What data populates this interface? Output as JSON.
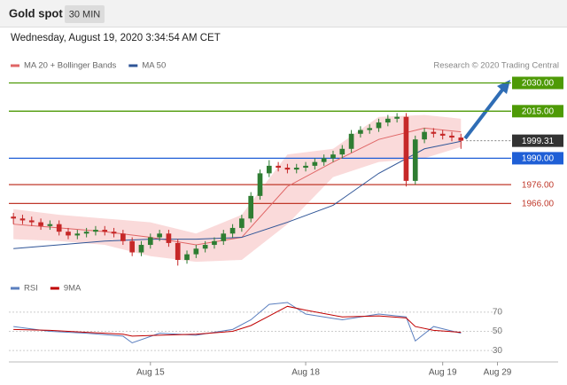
{
  "header": {
    "title": "Gold spot",
    "interval": "30 MIN",
    "timestamp": "Wednesday, August 19, 2020 3:34:54 AM CET"
  },
  "chart_data": [
    {
      "type": "candlestick",
      "source": "Research © 2020 Trading Central",
      "up_color": "#2e7d32",
      "down_color": "#c62828",
      "ohlc": [
        [
          1959,
          1961,
          1955,
          1958
        ],
        [
          1958,
          1960,
          1955,
          1957
        ],
        [
          1957,
          1959,
          1954,
          1956
        ],
        [
          1956,
          1958,
          1952,
          1954
        ],
        [
          1954,
          1957,
          1952,
          1955
        ],
        [
          1955,
          1957,
          1949,
          1951
        ],
        [
          1951,
          1953,
          1947,
          1949
        ],
        [
          1949,
          1952,
          1947,
          1950
        ],
        [
          1950,
          1953,
          1948,
          1951
        ],
        [
          1951,
          1954,
          1949,
          1952
        ],
        [
          1952,
          1954,
          1949,
          1951
        ],
        [
          1951,
          1953,
          1948,
          1950
        ],
        [
          1950,
          1952,
          1944,
          1946
        ],
        [
          1946,
          1948,
          1938,
          1940
        ],
        [
          1940,
          1946,
          1938,
          1944
        ],
        [
          1944,
          1950,
          1942,
          1948
        ],
        [
          1948,
          1952,
          1946,
          1950
        ],
        [
          1950,
          1952,
          1943,
          1945
        ],
        [
          1945,
          1947,
          1933,
          1936
        ],
        [
          1936,
          1941,
          1934,
          1939
        ],
        [
          1939,
          1944,
          1937,
          1942
        ],
        [
          1942,
          1946,
          1940,
          1944
        ],
        [
          1944,
          1948,
          1942,
          1946
        ],
        [
          1946,
          1952,
          1944,
          1950
        ],
        [
          1950,
          1955,
          1948,
          1953
        ],
        [
          1953,
          1960,
          1951,
          1958
        ],
        [
          1958,
          1972,
          1956,
          1970
        ],
        [
          1970,
          1984,
          1968,
          1982
        ],
        [
          1982,
          1989,
          1980,
          1986
        ],
        [
          1986,
          1988,
          1983,
          1985
        ],
        [
          1985,
          1987,
          1982,
          1984
        ],
        [
          1984,
          1987,
          1982,
          1985
        ],
        [
          1985,
          1988,
          1983,
          1986
        ],
        [
          1986,
          1990,
          1984,
          1988
        ],
        [
          1988,
          1992,
          1986,
          1990
        ],
        [
          1990,
          1994,
          1988,
          1992
        ],
        [
          1992,
          1997,
          1990,
          1995
        ],
        [
          1995,
          2005,
          1993,
          2003
        ],
        [
          2003,
          2007,
          2001,
          2005
        ],
        [
          2005,
          2008,
          2003,
          2006
        ],
        [
          2006,
          2011,
          2004,
          2009
        ],
        [
          2009,
          2013,
          2007,
          2011
        ],
        [
          2011,
          2014,
          2009,
          2012
        ],
        [
          2012,
          2014,
          1975,
          1978
        ],
        [
          1978,
          2002,
          1976,
          2000
        ],
        [
          2000,
          2006,
          1998,
          2004
        ],
        [
          2004,
          2006,
          2001,
          2003
        ],
        [
          2003,
          2005,
          2000,
          2002
        ],
        [
          2002,
          2004,
          1999,
          2001
        ],
        [
          2001,
          2003,
          1995,
          1999.31
        ]
      ],
      "series": [
        {
          "name": "MA 20 + Bollinger Bands",
          "color": "#e06666",
          "band_color": "#fadada",
          "x": [
            0,
            5,
            10,
            15,
            20,
            25,
            30,
            35,
            40,
            45,
            49
          ],
          "values": [
            1955,
            1953,
            1951,
            1948,
            1944,
            1948,
            1975,
            1988,
            2000,
            2006,
            2004
          ],
          "upper": [
            1963,
            1960,
            1958,
            1956,
            1950,
            1960,
            1992,
            1995,
            2012,
            2013,
            2011
          ],
          "lower": [
            1947,
            1946,
            1944,
            1938,
            1935,
            1936,
            1955,
            1980,
            1988,
            1990,
            1996
          ]
        },
        {
          "name": "MA 50",
          "color": "#2f5597",
          "x": [
            0,
            5,
            10,
            15,
            20,
            25,
            30,
            35,
            40,
            45,
            49
          ],
          "values": [
            1942,
            1944,
            1946,
            1947,
            1947,
            1948,
            1956,
            1965,
            1982,
            1995,
            1999
          ]
        }
      ],
      "levels": [
        {
          "value": 2030,
          "label": "2030.00",
          "color": "#4e9a06",
          "style": "box",
          "line": "solid"
        },
        {
          "value": 2015,
          "label": "2015.00",
          "color": "#4e9a06",
          "style": "box",
          "line": "solid"
        },
        {
          "value": 1999.31,
          "label": "1999.31",
          "color": "#333333",
          "style": "box",
          "line": "dotted"
        },
        {
          "value": 1990,
          "label": "1990.00",
          "color": "#1f5fd6",
          "style": "box",
          "line": "solid"
        },
        {
          "value": 1976,
          "label": "1976.00",
          "color": "#c0392b",
          "style": "text",
          "line": "solid"
        },
        {
          "value": 1966,
          "label": "1966.00",
          "color": "#c0392b",
          "style": "text",
          "line": "solid"
        }
      ],
      "xlim": [
        -0.5,
        54.5
      ],
      "ylim": [
        1928,
        2034
      ]
    },
    {
      "type": "line",
      "series": [
        {
          "name": "RSI",
          "color": "#5b7fbf",
          "x": [
            0,
            4,
            8,
            12,
            13,
            16,
            20,
            24,
            26,
            28,
            30,
            32,
            36,
            40,
            43,
            44,
            46,
            49
          ],
          "values": [
            55,
            50,
            48,
            45,
            38,
            48,
            46,
            52,
            62,
            78,
            80,
            68,
            62,
            68,
            65,
            40,
            55,
            48
          ]
        },
        {
          "name": "9MA",
          "color": "#c00000",
          "x": [
            0,
            4,
            8,
            12,
            13,
            16,
            20,
            24,
            26,
            28,
            30,
            32,
            36,
            40,
            43,
            44,
            46,
            49
          ],
          "values": [
            52,
            51,
            49,
            47,
            45,
            46,
            47,
            50,
            56,
            66,
            76,
            72,
            65,
            66,
            64,
            55,
            51,
            49
          ]
        }
      ],
      "xlim": [
        -0.5,
        54.5
      ],
      "ylim": [
        20,
        80
      ],
      "yticks": [
        30,
        50,
        70
      ],
      "xticks": [
        {
          "value": 15,
          "label": "Aug 15"
        },
        {
          "value": 32,
          "label": "Aug 18"
        },
        {
          "value": 47,
          "label": "Aug 19"
        },
        {
          "value": 53,
          "label": "Aug 29"
        }
      ]
    }
  ]
}
